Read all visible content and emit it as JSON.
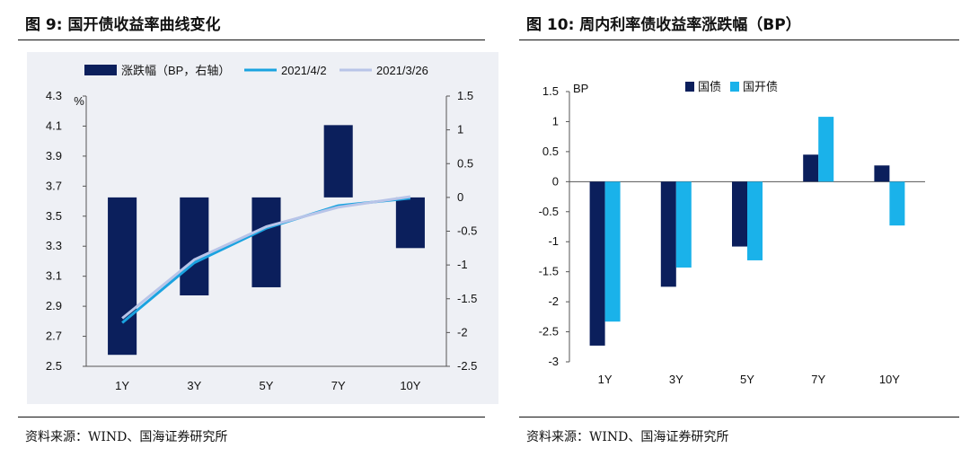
{
  "left": {
    "title": "图 9:  国开债收益率曲线变化",
    "source": "资料来源：WIND、国海证券研究所",
    "chart_data": {
      "type": "bar+line",
      "categories": [
        "1Y",
        "3Y",
        "5Y",
        "7Y",
        "10Y"
      ],
      "y_left_unit": "%",
      "y_left_lim": [
        2.5,
        4.3
      ],
      "y_left_ticks": [
        "4.3",
        "4.1",
        "3.9",
        "3.7",
        "3.5",
        "3.3",
        "3.1",
        "2.9",
        "2.7",
        "2.5"
      ],
      "y_right_lim": [
        -2.5,
        1.5
      ],
      "y_right_ticks": [
        "1.5",
        "1",
        "0.5",
        "0",
        "-0.5",
        "-1",
        "-1.5",
        "-2",
        "-2.5"
      ],
      "bars": {
        "name": "涨跌幅（BP，右轴）",
        "color": "#0b1f5c",
        "values": [
          -2.33,
          -1.45,
          -1.33,
          1.07,
          -0.75
        ]
      },
      "lines": [
        {
          "name": "2021/4/2",
          "color": "#1aa3e0",
          "values": [
            2.79,
            3.19,
            3.42,
            3.57,
            3.62
          ]
        },
        {
          "name": "2021/3/26",
          "color": "#b8c4e8",
          "values": [
            2.82,
            3.21,
            3.43,
            3.56,
            3.63
          ]
        }
      ],
      "legend_position": "top"
    }
  },
  "right": {
    "title": "图 10:  周内利率债收益率涨跌幅（BP）",
    "source": "资料来源：WIND、国海证券研究所",
    "chart_data": {
      "type": "bar",
      "categories": [
        "1Y",
        "3Y",
        "5Y",
        "7Y",
        "10Y"
      ],
      "y_unit": "BP",
      "ylim": [
        -3,
        1.5
      ],
      "y_ticks": [
        "1.5",
        "1",
        "0.5",
        "0",
        "-0.5",
        "-1",
        "-1.5",
        "-2",
        "-2.5",
        "-3"
      ],
      "series": [
        {
          "name": "国债",
          "color": "#0b1f5c",
          "values": [
            -2.73,
            -1.75,
            -1.08,
            0.45,
            0.27
          ]
        },
        {
          "name": "国开债",
          "color": "#1ab2ea",
          "values": [
            -2.33,
            -1.43,
            -1.31,
            1.08,
            -0.73
          ]
        }
      ],
      "legend_position": "top"
    }
  }
}
